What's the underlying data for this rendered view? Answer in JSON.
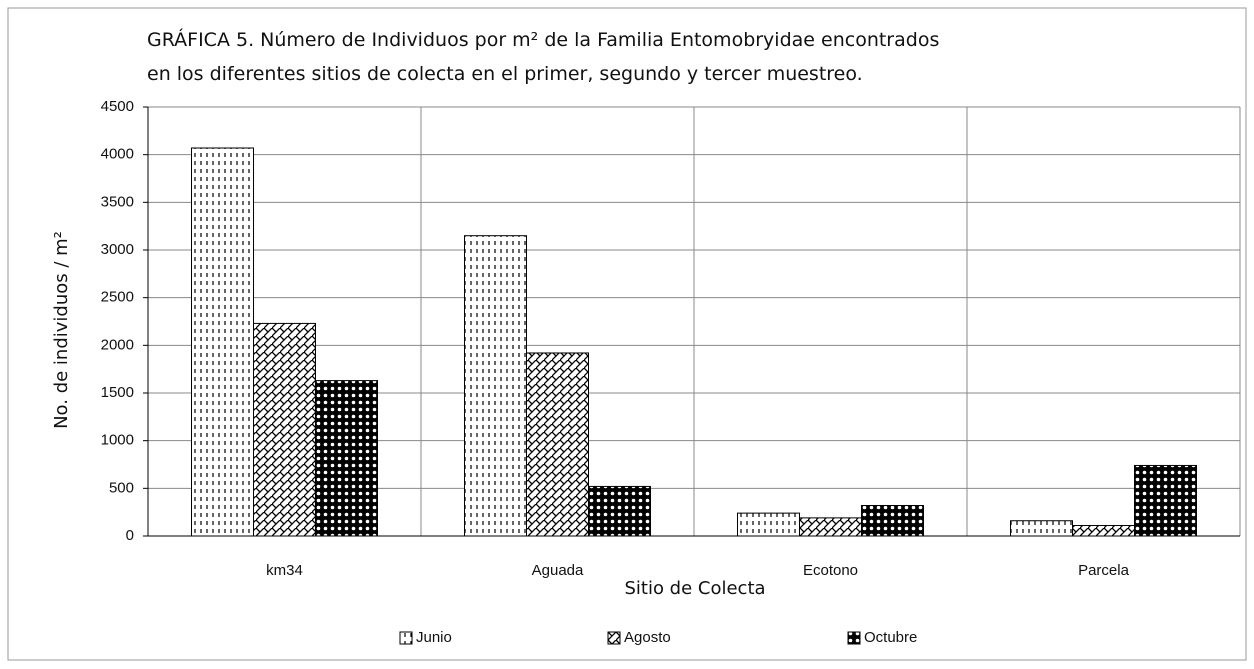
{
  "chart_data": {
    "type": "bar",
    "title": [
      "GRÁFICA 5. Número de Individuos por m² de la Familia Entomobryidae encontrados",
      "en los diferentes sitios de colecta  en el primer, segundo y tercer muestreo."
    ],
    "x_label": "Sitio de Colecta",
    "y_label": "No. de individuos / m²",
    "categories": [
      "km34",
      "Aguada",
      "Ecotono",
      "Parcela"
    ],
    "series": [
      {
        "name": "Junio",
        "color": "#000000",
        "values": [
          4070,
          3150,
          240,
          160
        ]
      },
      {
        "name": "Agosto",
        "color": "#000000",
        "values": [
          2230,
          1920,
          190,
          110
        ]
      },
      {
        "name": "Octubre",
        "color": "#000000",
        "values": [
          1630,
          520,
          320,
          740
        ]
      }
    ],
    "ylim": [
      0,
      4500
    ],
    "yticks": [
      0,
      500,
      1000,
      1500,
      2000,
      2500,
      3000,
      3500,
      4000,
      4500
    ],
    "grid": true,
    "legend": "bottom"
  }
}
